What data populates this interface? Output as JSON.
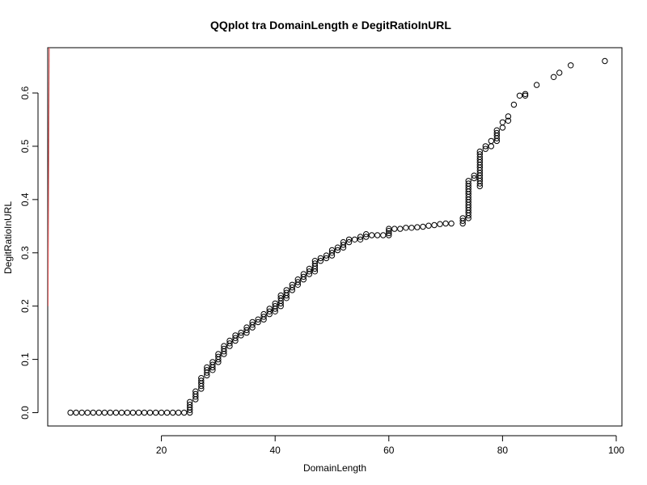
{
  "chart_data": {
    "type": "scatter",
    "title": "QQplot tra DomainLength e DegitRatioInURL",
    "xlabel": "DomainLength",
    "ylabel": "DegitRatioInURL",
    "xlim": [
      0,
      101
    ],
    "ylim": [
      -0.025,
      0.685
    ],
    "x_ticks": [
      20,
      40,
      60,
      80,
      100
    ],
    "y_ticks": [
      0.0,
      0.1,
      0.2,
      0.3,
      0.4,
      0.5,
      0.6
    ],
    "x_tick_labels": [
      "20",
      "40",
      "60",
      "80",
      "100"
    ],
    "y_tick_labels": [
      "0.0",
      "0.1",
      "0.2",
      "0.3",
      "0.4",
      "0.5",
      "0.6"
    ],
    "grid": false,
    "marker": "open-circle",
    "point_color": "#000000",
    "reference_line": {
      "color": "#e06060",
      "x": [
        0.05,
        0.25
      ],
      "y": [
        0.2,
        0.685
      ]
    },
    "series": [
      {
        "points": [
          [
            4,
            0
          ],
          [
            5,
            0
          ],
          [
            6,
            0
          ],
          [
            7,
            0
          ],
          [
            8,
            0
          ],
          [
            9,
            0
          ],
          [
            10,
            0
          ],
          [
            11,
            0
          ],
          [
            12,
            0
          ],
          [
            13,
            0
          ],
          [
            14,
            0
          ],
          [
            15,
            0
          ],
          [
            16,
            0
          ],
          [
            17,
            0
          ],
          [
            18,
            0
          ],
          [
            19,
            0
          ],
          [
            20,
            0
          ],
          [
            21,
            0
          ],
          [
            22,
            0
          ],
          [
            23,
            0
          ],
          [
            24,
            0
          ],
          [
            25,
            0
          ],
          [
            25,
            0.005
          ],
          [
            25,
            0.01
          ],
          [
            25,
            0.015
          ],
          [
            25,
            0.02
          ],
          [
            26,
            0.025
          ],
          [
            26,
            0.03
          ],
          [
            26,
            0.035
          ],
          [
            26,
            0.04
          ],
          [
            27,
            0.045
          ],
          [
            27,
            0.05
          ],
          [
            27,
            0.055
          ],
          [
            27,
            0.06
          ],
          [
            27,
            0.065
          ],
          [
            28,
            0.07
          ],
          [
            28,
            0.075
          ],
          [
            28,
            0.08
          ],
          [
            28,
            0.085
          ],
          [
            29,
            0.08
          ],
          [
            29,
            0.085
          ],
          [
            29,
            0.09
          ],
          [
            29,
            0.095
          ],
          [
            30,
            0.095
          ],
          [
            30,
            0.1
          ],
          [
            30,
            0.105
          ],
          [
            30,
            0.11
          ],
          [
            31,
            0.11
          ],
          [
            31,
            0.115
          ],
          [
            31,
            0.12
          ],
          [
            31,
            0.125
          ],
          [
            32,
            0.125
          ],
          [
            32,
            0.13
          ],
          [
            32,
            0.135
          ],
          [
            33,
            0.135
          ],
          [
            33,
            0.14
          ],
          [
            33,
            0.145
          ],
          [
            34,
            0.145
          ],
          [
            34,
            0.15
          ],
          [
            35,
            0.15
          ],
          [
            35,
            0.155
          ],
          [
            35,
            0.16
          ],
          [
            36,
            0.16
          ],
          [
            36,
            0.165
          ],
          [
            36,
            0.17
          ],
          [
            37,
            0.17
          ],
          [
            37,
            0.175
          ],
          [
            38,
            0.175
          ],
          [
            38,
            0.18
          ],
          [
            38,
            0.185
          ],
          [
            39,
            0.185
          ],
          [
            39,
            0.19
          ],
          [
            39,
            0.195
          ],
          [
            40,
            0.19
          ],
          [
            40,
            0.195
          ],
          [
            40,
            0.2
          ],
          [
            40,
            0.205
          ],
          [
            41,
            0.2
          ],
          [
            41,
            0.205
          ],
          [
            41,
            0.21
          ],
          [
            41,
            0.215
          ],
          [
            41,
            0.22
          ],
          [
            42,
            0.215
          ],
          [
            42,
            0.22
          ],
          [
            42,
            0.225
          ],
          [
            42,
            0.23
          ],
          [
            43,
            0.23
          ],
          [
            43,
            0.235
          ],
          [
            43,
            0.24
          ],
          [
            44,
            0.24
          ],
          [
            44,
            0.245
          ],
          [
            44,
            0.25
          ],
          [
            45,
            0.25
          ],
          [
            45,
            0.255
          ],
          [
            45,
            0.26
          ],
          [
            46,
            0.26
          ],
          [
            46,
            0.265
          ],
          [
            46,
            0.27
          ],
          [
            47,
            0.265
          ],
          [
            47,
            0.27
          ],
          [
            47,
            0.275
          ],
          [
            47,
            0.28
          ],
          [
            47,
            0.285
          ],
          [
            48,
            0.285
          ],
          [
            48,
            0.29
          ],
          [
            49,
            0.29
          ],
          [
            49,
            0.295
          ],
          [
            50,
            0.295
          ],
          [
            50,
            0.3
          ],
          [
            50,
            0.305
          ],
          [
            51,
            0.305
          ],
          [
            51,
            0.31
          ],
          [
            52,
            0.31
          ],
          [
            52,
            0.315
          ],
          [
            52,
            0.32
          ],
          [
            53,
            0.32
          ],
          [
            53,
            0.325
          ],
          [
            54,
            0.325
          ],
          [
            55,
            0.325
          ],
          [
            55,
            0.33
          ],
          [
            56,
            0.33
          ],
          [
            56,
            0.335
          ],
          [
            57,
            0.333
          ],
          [
            58,
            0.333
          ],
          [
            59,
            0.333
          ],
          [
            60,
            0.333
          ],
          [
            60,
            0.337
          ],
          [
            60,
            0.341
          ],
          [
            60,
            0.345
          ],
          [
            61,
            0.345
          ],
          [
            62,
            0.345
          ],
          [
            63,
            0.347
          ],
          [
            64,
            0.347
          ],
          [
            65,
            0.348
          ],
          [
            66,
            0.349
          ],
          [
            67,
            0.351
          ],
          [
            68,
            0.352
          ],
          [
            69,
            0.354
          ],
          [
            70,
            0.355
          ],
          [
            71,
            0.355
          ],
          [
            73,
            0.355
          ],
          [
            73,
            0.36
          ],
          [
            73,
            0.365
          ],
          [
            74,
            0.365
          ],
          [
            74,
            0.37
          ],
          [
            74,
            0.375
          ],
          [
            74,
            0.38
          ],
          [
            74,
            0.385
          ],
          [
            74,
            0.39
          ],
          [
            74,
            0.395
          ],
          [
            74,
            0.4
          ],
          [
            74,
            0.405
          ],
          [
            74,
            0.41
          ],
          [
            74,
            0.415
          ],
          [
            74,
            0.42
          ],
          [
            74,
            0.425
          ],
          [
            74,
            0.43
          ],
          [
            74,
            0.435
          ],
          [
            75,
            0.44
          ],
          [
            75,
            0.445
          ],
          [
            76,
            0.425
          ],
          [
            76,
            0.43
          ],
          [
            76,
            0.435
          ],
          [
            76,
            0.44
          ],
          [
            76,
            0.445
          ],
          [
            76,
            0.45
          ],
          [
            76,
            0.455
          ],
          [
            76,
            0.46
          ],
          [
            76,
            0.465
          ],
          [
            76,
            0.47
          ],
          [
            76,
            0.475
          ],
          [
            76,
            0.48
          ],
          [
            76,
            0.485
          ],
          [
            76,
            0.49
          ],
          [
            77,
            0.495
          ],
          [
            77,
            0.5
          ],
          [
            78,
            0.5
          ],
          [
            78,
            0.51
          ],
          [
            79,
            0.51
          ],
          [
            79,
            0.515
          ],
          [
            79,
            0.52
          ],
          [
            79,
            0.525
          ],
          [
            79,
            0.53
          ],
          [
            80,
            0.535
          ],
          [
            80,
            0.545
          ],
          [
            81,
            0.548
          ],
          [
            81,
            0.556
          ],
          [
            82,
            0.578
          ],
          [
            83,
            0.595
          ],
          [
            84,
            0.595
          ],
          [
            84,
            0.598
          ],
          [
            86,
            0.615
          ],
          [
            89,
            0.63
          ],
          [
            90,
            0.638
          ],
          [
            92,
            0.652
          ],
          [
            98,
            0.66
          ]
        ]
      }
    ]
  }
}
